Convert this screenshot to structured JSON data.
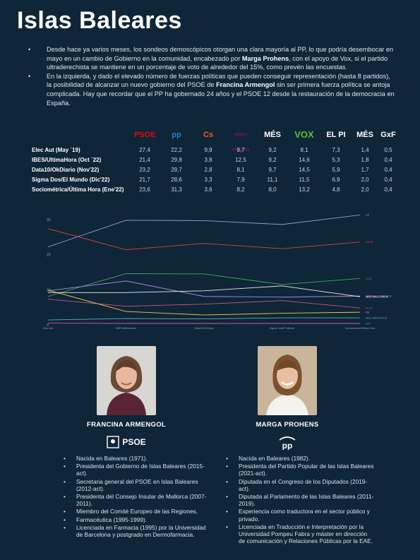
{
  "title": "Islas Baleares",
  "intro": [
    {
      "pre": "Desde hace ya varios meses, los sondeos demoscópicos otorgan una clara mayoría al PP, lo que podría desembocar en mayo en un cambio de Gobierno en la comunidad, encabezado por ",
      "bold": "Marga Prohens",
      "post": ", con el apoyo de Vox, si el partido ultraderechista se mantiene en un porcentaje de voto de alrededor del 15%, como prevén las encuestas."
    },
    {
      "pre": "En la izquierda, y dado el elevado número de fuerzas políticas que pueden conseguir representación (hasta 8 partidos), la posibilidad de alcanzar un nuevo gobierno del PSOE de ",
      "bold": "Francina Armengol",
      "post": " sin ser primera fuerza política se antoja complicada. Hay que recordar que el PP ha gobernado 24 años y el PSOE 12 desde la restauración de la democracia en España."
    }
  ],
  "party_logos": [
    {
      "name": "PSOE",
      "label": "PSOE",
      "color": "#e30613"
    },
    {
      "name": "PP",
      "label": "pp",
      "color": "#1d84c6"
    },
    {
      "name": "Cs",
      "label": "Cs",
      "color": "#eb6109"
    },
    {
      "name": "Units Podem",
      "label": "UNIDAS PODEMOS",
      "color": "#6b1f5f"
    },
    {
      "name": "MÉS per Mallorca",
      "label": "MÉS",
      "color": "#ffffff"
    },
    {
      "name": "VOX",
      "label": "VOX",
      "color": "#5ac035"
    },
    {
      "name": "El Pi",
      "label": "EL PI",
      "color": "#ffffff"
    },
    {
      "name": "MÉS per Menorca",
      "label": "MÉS",
      "color": "#ffffff"
    },
    {
      "name": "GxF",
      "label": "GxF",
      "color": "#ffffff"
    }
  ],
  "poll_table": {
    "rows": [
      {
        "label": "Elec Aut (May `19)",
        "values": [
          "27,4",
          "22,2",
          "9,9",
          "9,7",
          "9,2",
          "8,1",
          "7,3",
          "1,4",
          "0,5"
        ]
      },
      {
        "label": "IBES/UltimaHora (Oct `22)",
        "values": [
          "21,4",
          "29,8",
          "3,8",
          "12,5",
          "9,2",
          "14,6",
          "5,3",
          "1,8",
          "0,4"
        ]
      },
      {
        "label": "Data10/OkDiario (Nov'22)",
        "values": [
          "23,2",
          "29,7",
          "2,8",
          "8,1",
          "9,7",
          "14,5",
          "5,9",
          "1,7",
          "0,4"
        ]
      },
      {
        "label": "Sigma Dos/El Mundo (Dic'22)",
        "values": [
          "21,7",
          "28,6",
          "3,3",
          "7,9",
          "11,1",
          "11,5",
          "6,9",
          "2,0",
          "0,4"
        ]
      },
      {
        "label": "Sociométrica/Última Hora (Ene'22)",
        "values": [
          "23,6",
          "31,3",
          "3,6",
          "8,2",
          "8,0",
          "13,2",
          "4,8",
          "2,0",
          "0,4"
        ]
      }
    ]
  },
  "chart_data": {
    "type": "line",
    "x": [
      "Elec Aut",
      "IBES/UltimaHora",
      "Data10/OkDiario",
      "Sigma Dos/El Mundo",
      "Sociométrica/Última Hora"
    ],
    "y_ticks": [
      "30",
      "20",
      "10",
      "0"
    ],
    "ylim": [
      0,
      33
    ],
    "series": [
      {
        "name": "PP",
        "color": "#7aa7d6",
        "values": [
          22.2,
          29.8,
          29.7,
          28.6,
          31.3
        ]
      },
      {
        "name": "PSOE",
        "color": "#d9443a",
        "values": [
          27.4,
          21.4,
          23.2,
          21.7,
          23.6
        ]
      },
      {
        "name": "VOX",
        "color": "#3fae5a",
        "values": [
          8.1,
          14.6,
          14.5,
          11.5,
          13.2
        ]
      },
      {
        "name": "UNIDAS PODEMOS",
        "color": "#9c8fd0",
        "values": [
          9.7,
          12.5,
          8.1,
          7.9,
          8.2
        ]
      },
      {
        "name": "MÉS MALLORCA",
        "color": "#f0eee0",
        "values": [
          9.2,
          9.2,
          9.7,
          11.1,
          8.0
        ]
      },
      {
        "name": "EL PI",
        "color": "#c9567a",
        "values": [
          7.3,
          5.3,
          5.9,
          6.9,
          4.8
        ]
      },
      {
        "name": "Cs",
        "color": "#f0c84a",
        "values": [
          9.9,
          3.8,
          2.8,
          3.3,
          3.6
        ]
      },
      {
        "name": "MÉS MENORCA",
        "color": "#49b8b0",
        "values": [
          1.4,
          1.8,
          1.7,
          2.0,
          2.0
        ]
      },
      {
        "name": "GxF",
        "color": "#e05a8a",
        "values": [
          0.5,
          0.4,
          0.4,
          0.4,
          0.4
        ]
      }
    ]
  },
  "candidates": [
    {
      "name": "FRANCINA ARMENGOL",
      "party": "PSOE",
      "bio": [
        "Nacida en Baleares (1971).",
        "Presidenta del Gobierno de Islas Baleares (2015-act).",
        "Secretaria general del PSOE en Islas Baleares (2012-act).",
        "Presidenta del Consejo Insular de Mallorca (2007-2011).",
        "Miembro del Comité Europeo de las Regiones.",
        "Farmacéutica (1995-1999).",
        "Licenciada en Farmacia (1995) por la Universidad de Barcelona y postgrado en Dermofarmacia."
      ]
    },
    {
      "name": "MARGA PROHENS",
      "party": "pp",
      "bio": [
        "Nacida en Baleares (1982).",
        "Presidenta del Partido Popular de las Islas Baleares (2021-act).",
        "Diputada en el Congreso de los Diputados (2019-act).",
        "Diputada al Parlamento de las Islas Baleares (2011-2019).",
        "Experiencia como traductora en el sector público y privado.",
        "Licenciada en Traducción e Interpretación por la Universidad Pompeu Fabra y máster en dirección de comunicación y Relaciones Públicas por la EAE."
      ]
    }
  ]
}
